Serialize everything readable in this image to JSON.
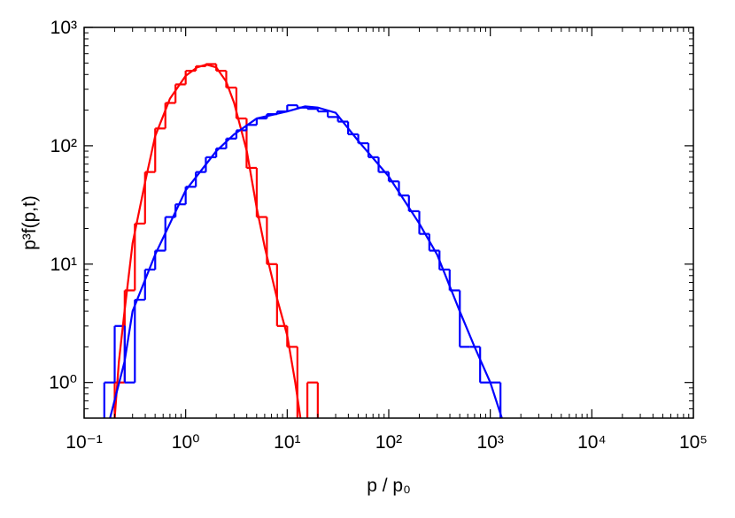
{
  "chart_data": {
    "type": "histogram",
    "x_label": "p / p₀",
    "y_label": "p³f(p,t)",
    "xscale": "log",
    "yscale": "log",
    "xlim": [
      0.1,
      100000
    ],
    "ylim": [
      0.5,
      1000
    ],
    "xticks": [
      {
        "value": 0.1,
        "label": "10⁻¹"
      },
      {
        "value": 1,
        "label": "10⁰"
      },
      {
        "value": 10,
        "label": "10¹"
      },
      {
        "value": 100,
        "label": "10²"
      },
      {
        "value": 1000,
        "label": "10³"
      },
      {
        "value": 10000,
        "label": "10⁴"
      },
      {
        "value": 100000,
        "label": "10⁵"
      }
    ],
    "yticks": [
      {
        "value": 1,
        "label": "10⁰"
      },
      {
        "value": 10,
        "label": "10¹"
      },
      {
        "value": 100,
        "label": "10²"
      },
      {
        "value": 1000,
        "label": "10³"
      }
    ],
    "minor_ticks": true,
    "histograms": [
      {
        "color": "#ff0000",
        "bins": [
          0.2,
          0.251,
          0.316,
          0.398,
          0.501,
          0.631,
          0.794,
          1,
          1.26,
          1.58,
          2,
          2.51,
          3.16,
          3.98,
          5.01,
          6.31,
          7.94,
          10,
          12.6,
          15.8,
          20
        ],
        "counts": [
          1,
          6,
          22,
          60,
          140,
          230,
          330,
          430,
          470,
          490,
          430,
          310,
          170,
          65,
          25,
          10,
          3,
          2,
          0,
          1
        ]
      },
      {
        "color": "#0000ff",
        "bins": [
          0.158,
          0.2,
          0.251,
          0.316,
          0.398,
          0.501,
          0.631,
          0.794,
          1,
          1.26,
          1.58,
          2,
          2.51,
          3.16,
          3.98,
          5.01,
          6.31,
          7.94,
          10,
          12.6,
          15.8,
          20,
          25.1,
          31.6,
          39.8,
          50.1,
          63.1,
          79.4,
          100,
          126,
          158,
          200,
          251,
          316,
          398,
          501,
          631,
          794,
          1000,
          1260,
          1580
        ],
        "counts": [
          1,
          3,
          1,
          5,
          9,
          13,
          25,
          32,
          45,
          60,
          80,
          95,
          115,
          135,
          150,
          170,
          185,
          195,
          220,
          210,
          205,
          195,
          175,
          160,
          125,
          105,
          80,
          60,
          50,
          38,
          28,
          18,
          13,
          9,
          6,
          2,
          2,
          1,
          1,
          0
        ]
      }
    ],
    "curves": [
      {
        "color": "#ff0000",
        "x": [
          0.2,
          0.22,
          0.25,
          0.3,
          0.4,
          0.5,
          0.7,
          1.0,
          1.3,
          1.6,
          2.0,
          2.5,
          3.0,
          4.0,
          5.0,
          6.0,
          8.0,
          10,
          12,
          13.5
        ],
        "values": [
          0.5,
          1.5,
          4,
          15,
          50,
          120,
          250,
          390,
          460,
          485,
          460,
          350,
          230,
          90,
          30,
          14,
          5,
          2.5,
          1,
          0.5
        ]
      },
      {
        "color": "#0000ff",
        "x": [
          0.18,
          0.25,
          0.3,
          0.5,
          1,
          2,
          3,
          5,
          10,
          15,
          20,
          30,
          50,
          100,
          200,
          300,
          500,
          700,
          1000,
          1300
        ],
        "values": [
          0.5,
          1.5,
          4,
          12,
          42,
          90,
          125,
          170,
          195,
          215,
          210,
          190,
          110,
          55,
          22,
          12,
          4,
          2,
          1,
          0.5
        ]
      }
    ]
  }
}
